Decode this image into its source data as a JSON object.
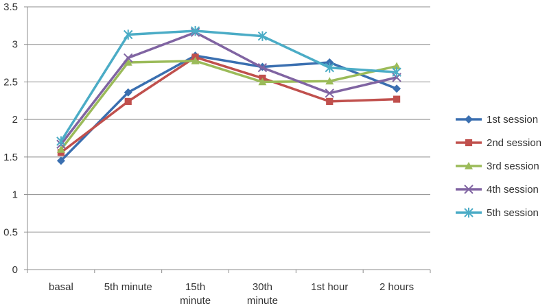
{
  "chart_data": {
    "type": "line",
    "title": "",
    "xlabel": "",
    "ylabel": "",
    "categories": [
      [
        "basal"
      ],
      [
        "5th  minute"
      ],
      [
        "15th",
        "minute"
      ],
      [
        "30th",
        "minute"
      ],
      [
        "1st hour"
      ],
      [
        "2 hours"
      ]
    ],
    "ylim": [
      0,
      3.5
    ],
    "yticks": [
      "0",
      "0.5",
      "1",
      "1.5",
      "2",
      "2.5",
      "3",
      "3.5"
    ],
    "grid": true,
    "legend_position": "right",
    "series": [
      {
        "name": "1st session",
        "color": "#3a6fb0",
        "marker": "diamond",
        "values": [
          1.45,
          2.36,
          2.85,
          2.7,
          2.76,
          2.41
        ]
      },
      {
        "name": "2nd session",
        "color": "#c0504d",
        "marker": "square",
        "values": [
          1.56,
          2.24,
          2.83,
          2.55,
          2.24,
          2.27
        ]
      },
      {
        "name": "3rd session",
        "color": "#9bbb59",
        "marker": "triangle",
        "values": [
          1.6,
          2.76,
          2.78,
          2.5,
          2.51,
          2.71
        ]
      },
      {
        "name": "4th session",
        "color": "#8064a2",
        "marker": "x",
        "values": [
          1.67,
          2.82,
          3.16,
          2.69,
          2.35,
          2.56
        ]
      },
      {
        "name": "5th session",
        "color": "#4bacc6",
        "marker": "star",
        "values": [
          1.71,
          3.13,
          3.18,
          3.11,
          2.69,
          2.63
        ]
      }
    ]
  }
}
